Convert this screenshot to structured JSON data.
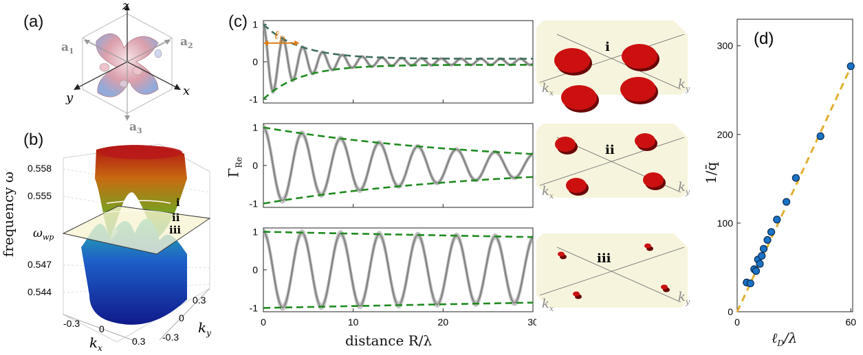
{
  "panels": {
    "a": {
      "label": "(a)",
      "axis_z": "z",
      "axis_x": "x",
      "axis_y": "y",
      "a1": "a",
      "a1_sub": "1",
      "a2": "a",
      "a2_sub": "2",
      "a3": "a",
      "a3_sub": "3"
    },
    "b": {
      "label": "(b)",
      "ylabel": "frequency ω",
      "omega_wp": "ω",
      "omega_wp_sub": "wp",
      "zticks": [
        "0.558",
        "0.555",
        "0.547",
        "0.544"
      ],
      "kx_ticks": [
        "-0.3",
        "0",
        "0.3"
      ],
      "ky_ticks": [
        "0.3",
        "0",
        "-0.3"
      ],
      "kx_label": "k",
      "kx_sub": "x",
      "ky_label": "k",
      "ky_sub": "y",
      "level_labels": [
        "i",
        "ii",
        "iii"
      ]
    },
    "c": {
      "label": "(c)",
      "ylabel": "Γ",
      "ylabel_sub": "Re",
      "xlabel": "distance R/λ",
      "ld_label": "ℓ",
      "ld_sub": "D",
      "yticks": [
        "1",
        "0",
        "-1"
      ],
      "xticks": [
        "0",
        "10",
        "20",
        "30"
      ],
      "insets": [
        {
          "roman": "i",
          "kx": "k",
          "kx_sub": "x",
          "ky": "k",
          "ky_sub": "y"
        },
        {
          "roman": "ii",
          "kx": "k",
          "kx_sub": "x",
          "ky": "k",
          "ky_sub": "y"
        },
        {
          "roman": "iii",
          "kx": "k",
          "kx_sub": "x",
          "ky": "k",
          "ky_sub": "y"
        }
      ]
    },
    "d": {
      "label": "(d)",
      "ylabel": "1/q̄",
      "xlabel": "ℓ",
      "xlabel_sub": "D",
      "xlabel_tail": "/λ",
      "yticks": [
        "300",
        "200",
        "100",
        "0"
      ],
      "xticks": [
        "0",
        "60"
      ]
    }
  },
  "colors": {
    "envelope": "#1f8a1f",
    "envelope_top": "#3c6e5a",
    "oscillation": "#555555",
    "points": "#1a73c6",
    "fit_line": "#e0b030",
    "fermi": "#cc1010",
    "arrow": "#e07a10"
  },
  "chart_data": [
    {
      "type": "line",
      "panel": "c-top",
      "xlabel": "distance R/λ",
      "ylabel": "ΓRe",
      "xlim": [
        0,
        30
      ],
      "ylim": [
        -1.1,
        1.1
      ],
      "series": [
        {
          "kind": "oscillation",
          "amplitude": 1.0,
          "decay_length": 4.0,
          "period": 2.2,
          "floor": 0.08
        },
        {
          "kind": "envelope",
          "amplitude": 1.0,
          "decay_length": 4.0,
          "floor": 0.08
        }
      ]
    },
    {
      "type": "line",
      "panel": "c-middle",
      "xlim": [
        0,
        30
      ],
      "ylim": [
        -1.1,
        1.1
      ],
      "series": [
        {
          "kind": "oscillation",
          "amplitude": 1.0,
          "decay_length": 25.0,
          "period": 4.3,
          "floor": 0.0
        },
        {
          "kind": "envelope",
          "amplitude": 1.0,
          "decay_length": 25.0,
          "floor": 0.0
        }
      ]
    },
    {
      "type": "line",
      "panel": "c-bottom",
      "xlim": [
        0,
        30
      ],
      "ylim": [
        -1.1,
        1.1
      ],
      "series": [
        {
          "kind": "oscillation",
          "amplitude": 1.0,
          "decay_length": 200.0,
          "period": 4.3,
          "floor": 0.0
        },
        {
          "kind": "envelope",
          "amplitude": 1.0,
          "decay_length": 200.0,
          "floor": 0.0
        }
      ]
    },
    {
      "type": "scatter",
      "panel": "d",
      "xlabel": "ℓD/λ",
      "ylabel": "1/q̄",
      "xlim": [
        0,
        61
      ],
      "ylim": [
        0,
        330
      ],
      "points": [
        [
          5,
          33
        ],
        [
          7,
          32
        ],
        [
          9,
          48
        ],
        [
          10,
          46
        ],
        [
          11,
          59
        ],
        [
          12,
          54
        ],
        [
          13,
          63
        ],
        [
          14,
          71
        ],
        [
          16,
          81
        ],
        [
          18,
          90
        ],
        [
          21,
          104
        ],
        [
          26,
          124
        ],
        [
          31,
          151
        ],
        [
          44,
          198
        ],
        [
          60,
          277
        ]
      ],
      "fit": {
        "slope": 4.6,
        "intercept": 0,
        "x_range": [
          0,
          60
        ]
      }
    }
  ]
}
